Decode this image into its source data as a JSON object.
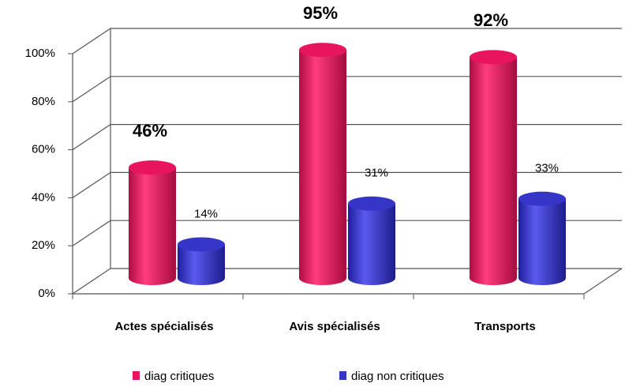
{
  "chart_data": {
    "type": "bar3d",
    "categories": [
      "Actes spécialisés",
      "Avis spécialisés",
      "Transports"
    ],
    "series": [
      {
        "name": "diag critiques",
        "color": "#e8155e",
        "values": [
          46,
          95,
          92
        ],
        "value_labels": [
          "46%",
          "95%",
          "92%"
        ]
      },
      {
        "name": "diag non critiques",
        "color": "#3535c8",
        "values": [
          14,
          31,
          33
        ],
        "value_labels": [
          "14%",
          "31%",
          "33%"
        ]
      }
    ],
    "ylim": [
      0,
      100
    ],
    "yticks": [
      {
        "value": 0,
        "label": "0%"
      },
      {
        "value": 20,
        "label": "20%"
      },
      {
        "value": 40,
        "label": "40%"
      },
      {
        "value": 60,
        "label": "60%"
      },
      {
        "value": 80,
        "label": "80%"
      },
      {
        "value": 100,
        "label": "100%"
      }
    ],
    "grid": true,
    "legend": "bottom"
  }
}
